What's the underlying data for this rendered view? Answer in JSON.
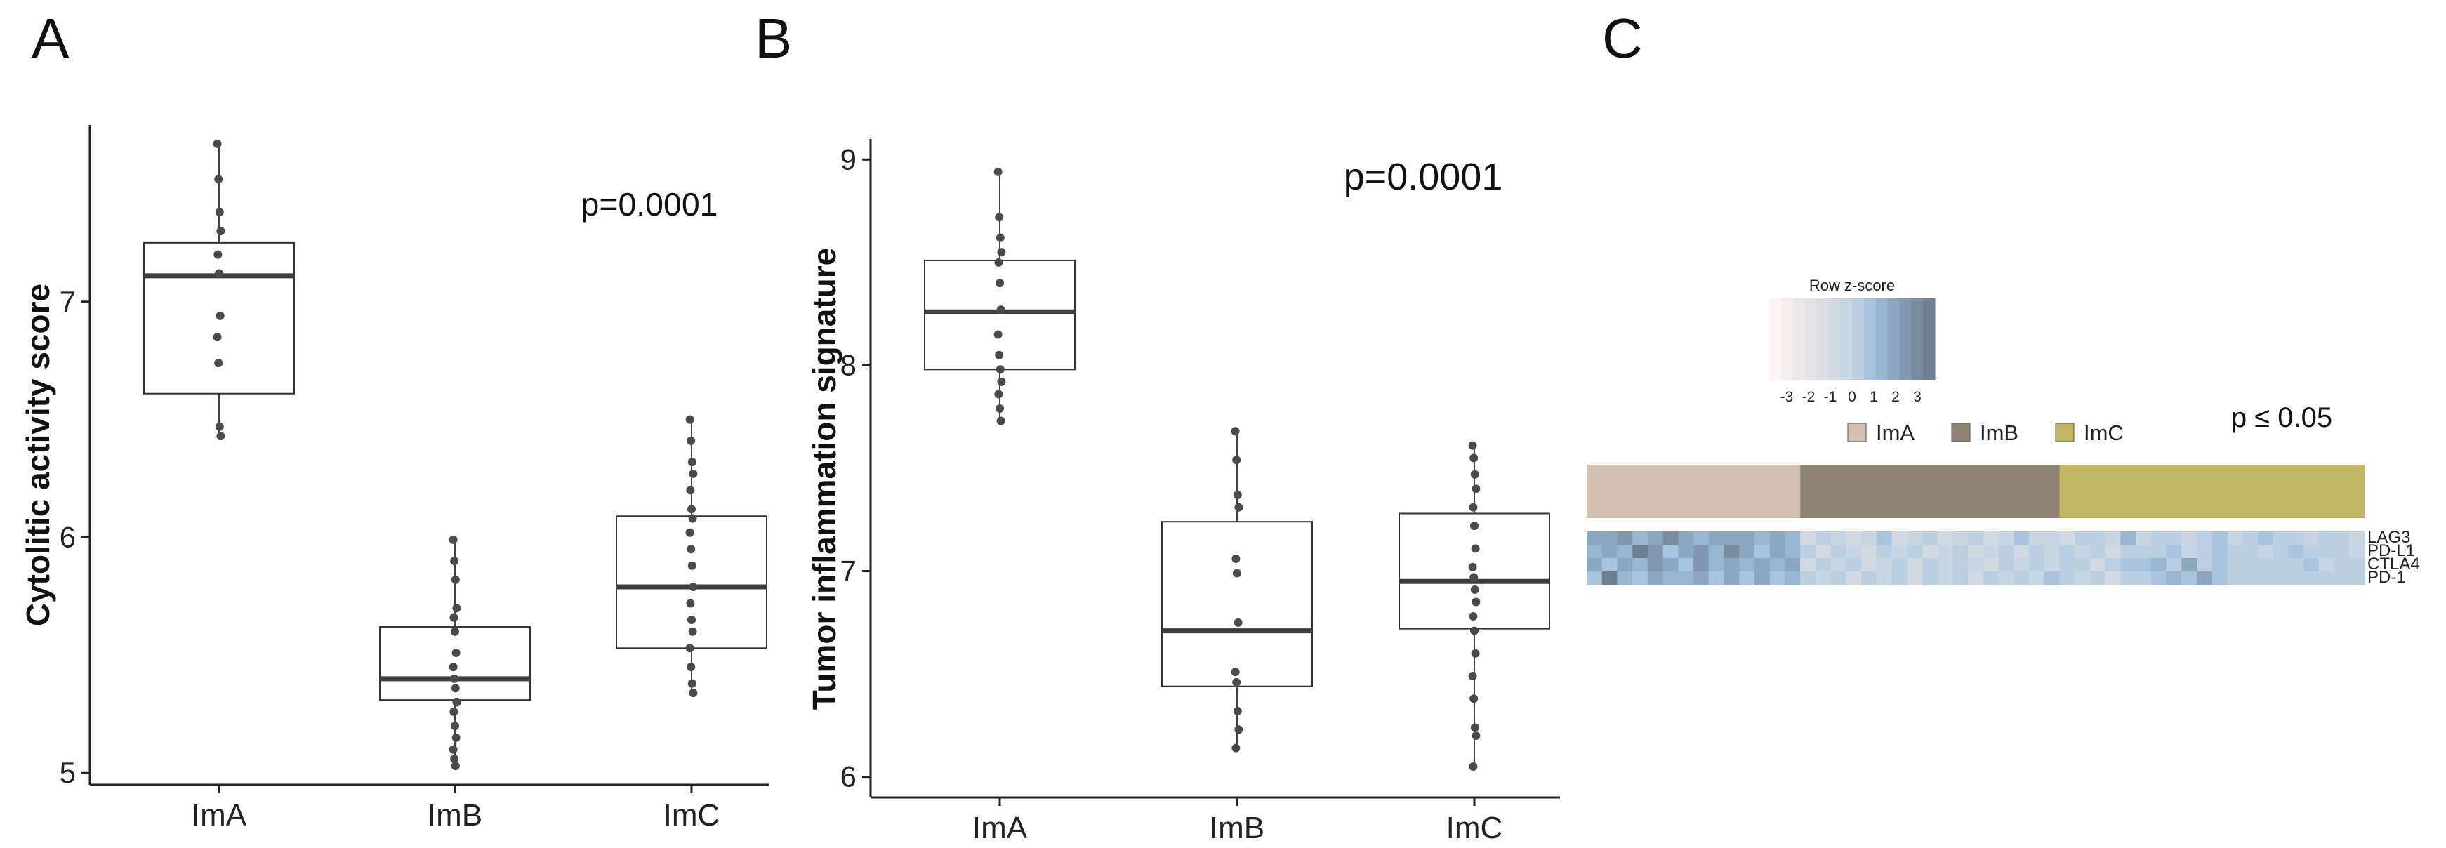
{
  "panels": [
    "A",
    "B",
    "C"
  ],
  "chart_data": [
    {
      "type": "box",
      "panel": "A",
      "title": "",
      "xlabel": "",
      "ylabel": "Cytolitic activity score",
      "ylim": [
        4.95,
        7.75
      ],
      "yticks": [
        5,
        6,
        7
      ],
      "annotation": "p=0.0001",
      "categories": [
        "ImA",
        "ImB",
        "ImC"
      ],
      "boxes": [
        {
          "q1": 6.61,
          "median": 7.11,
          "q3": 7.25,
          "whisker_low": 6.42,
          "whisker_high": 7.67,
          "points": [
            7.67,
            7.52,
            7.38,
            7.3,
            7.2,
            7.12,
            6.94,
            6.85,
            6.74,
            6.47,
            6.43
          ]
        },
        {
          "q1": 5.31,
          "median": 5.4,
          "q3": 5.62,
          "whisker_low": 5.03,
          "whisker_high": 5.99,
          "points": [
            5.99,
            5.9,
            5.82,
            5.7,
            5.66,
            5.6,
            5.51,
            5.45,
            5.4,
            5.36,
            5.3,
            5.26,
            5.2,
            5.15,
            5.1,
            5.06,
            5.03
          ]
        },
        {
          "q1": 5.53,
          "median": 5.79,
          "q3": 6.09,
          "whisker_low": 5.34,
          "whisker_high": 6.5,
          "points": [
            6.5,
            6.41,
            6.32,
            6.27,
            6.2,
            6.12,
            6.08,
            6.02,
            5.95,
            5.88,
            5.79,
            5.72,
            5.65,
            5.6,
            5.53,
            5.45,
            5.38,
            5.34
          ]
        }
      ]
    },
    {
      "type": "box",
      "panel": "B",
      "title": "",
      "xlabel": "",
      "ylabel": "Tumor inflammation signature",
      "ylim": [
        5.9,
        9.1
      ],
      "yticks": [
        6,
        7,
        8,
        9
      ],
      "annotation": "p=0.0001",
      "categories": [
        "ImA",
        "ImB",
        "ImC"
      ],
      "boxes": [
        {
          "q1": 7.98,
          "median": 8.26,
          "q3": 8.51,
          "whisker_low": 7.73,
          "whisker_high": 8.94,
          "points": [
            8.94,
            8.72,
            8.62,
            8.55,
            8.5,
            8.4,
            8.27,
            8.15,
            8.05,
            7.98,
            7.92,
            7.86,
            7.79,
            7.73
          ]
        },
        {
          "q1": 6.44,
          "median": 6.71,
          "q3": 7.24,
          "whisker_low": 6.14,
          "whisker_high": 7.68,
          "points": [
            7.68,
            7.54,
            7.37,
            7.31,
            7.06,
            6.99,
            6.75,
            6.51,
            6.46,
            6.32,
            6.23,
            6.14
          ]
        },
        {
          "q1": 6.72,
          "median": 6.95,
          "q3": 7.28,
          "whisker_low": 6.05,
          "whisker_high": 7.61,
          "points": [
            7.61,
            7.55,
            7.47,
            7.4,
            7.31,
            7.22,
            7.11,
            7.02,
            6.97,
            6.91,
            6.85,
            6.78,
            6.71,
            6.6,
            6.49,
            6.38,
            6.24,
            6.2,
            6.05
          ]
        }
      ]
    },
    {
      "type": "heatmap",
      "panel": "C",
      "legend_title": "Row z-score",
      "scale_ticks": [
        "-3",
        "-2",
        "-1",
        "0",
        "1",
        "2",
        "3"
      ],
      "scale_colors": [
        "#faf5f4",
        "#f3eded",
        "#ebe7e8",
        "#e3e2e4",
        "#dbdde2",
        "#d2d9e1",
        "#c8d5e2",
        "#bacfe2",
        "#a8c4de",
        "#98b6d1",
        "#8ca7c0",
        "#8198ae",
        "#788b9f",
        "#6e7f91"
      ],
      "annotation": "p ≤ 0.05",
      "groups": [
        {
          "name": "ImA",
          "color": "#d3c2b1",
          "n": 14
        },
        {
          "name": "ImB",
          "color": "#8f8374",
          "n": 17
        },
        {
          "name": "ImC",
          "color": "#c2b664",
          "n": 20
        }
      ],
      "rows": [
        "LAG3",
        "PD-L1",
        "CTLA4",
        "PD-1"
      ],
      "matrix": [
        [
          1.6,
          1.4,
          2.0,
          1.1,
          1.5,
          2.2,
          1.7,
          1.0,
          1.6,
          1.3,
          1.5,
          0.9,
          1.4,
          1.2,
          -0.6,
          0.2,
          -0.3,
          -0.7,
          -0.2,
          0.5,
          -0.8,
          -0.4,
          0.1,
          -0.6,
          -0.3,
          0.3,
          -0.5,
          -0.1,
          0.6,
          -0.4,
          -0.2,
          -0.5,
          0.2,
          0.0,
          -0.3,
          1.0,
          -0.2,
          0.4,
          0.1,
          -0.1,
          0.3,
          0.8,
          -0.2,
          0.2,
          0.5,
          0.0,
          0.3,
          -0.1,
          0.4,
          0.2,
          -0.3
        ],
        [
          0.9,
          1.7,
          1.2,
          2.6,
          1.8,
          0.6,
          1.4,
          1.9,
          1.1,
          2.3,
          1.5,
          0.8,
          1.6,
          1.2,
          0.3,
          -0.6,
          0.2,
          -0.4,
          -0.8,
          0.1,
          -0.3,
          0.4,
          -0.7,
          -0.2,
          0.0,
          -0.5,
          -0.1,
          0.2,
          -0.6,
          0.1,
          -0.4,
          0.0,
          -0.3,
          0.3,
          -0.5,
          0.2,
          0.4,
          0.0,
          0.5,
          -0.2,
          0.3,
          0.6,
          0.1,
          0.2,
          -0.1,
          0.4,
          0.5,
          0.2,
          0.0,
          0.3,
          -0.2
        ],
        [
          1.3,
          0.8,
          1.6,
          1.0,
          2.0,
          1.4,
          0.7,
          1.8,
          1.2,
          1.5,
          1.1,
          1.6,
          0.9,
          1.3,
          -0.5,
          0.1,
          -0.2,
          0.3,
          -0.7,
          -0.1,
          0.2,
          -0.6,
          0.0,
          -0.4,
          0.3,
          -0.2,
          -0.8,
          0.1,
          -0.3,
          0.4,
          -0.1,
          0.0,
          0.2,
          -0.5,
          0.1,
          0.6,
          0.8,
          1.2,
          0.4,
          1.5,
          0.2,
          0.5,
          0.1,
          0.3,
          0.0,
          0.4,
          0.2,
          0.5,
          -0.1,
          0.3,
          0.2
        ],
        [
          0.6,
          2.8,
          1.1,
          0.7,
          1.5,
          0.9,
          1.2,
          1.6,
          0.8,
          1.3,
          0.5,
          1.4,
          0.7,
          1.0,
          0.2,
          -0.4,
          0.1,
          -0.6,
          0.3,
          -0.2,
          0.0,
          -0.5,
          0.2,
          -0.3,
          0.4,
          -0.7,
          0.1,
          -0.1,
          0.3,
          -0.4,
          0.5,
          0.0,
          -0.2,
          0.2,
          -0.6,
          0.1,
          0.4,
          0.7,
          1.0,
          0.5,
          1.4,
          0.6,
          0.2,
          0.1,
          0.3,
          0.0,
          0.2,
          0.4,
          0.1,
          0.3,
          0.0
        ]
      ]
    }
  ]
}
